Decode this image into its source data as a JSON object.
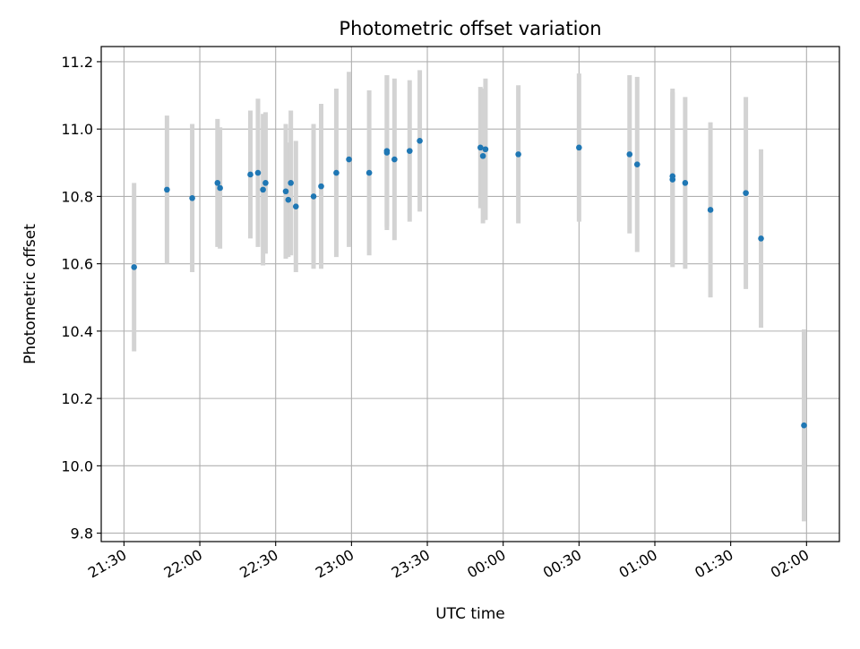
{
  "chart_data": {
    "type": "scatter",
    "title": "Photometric offset variation",
    "xlabel": "UTC time",
    "ylabel": "Photometric offset",
    "x_unit": "UTC time (hh:mm), evening to next morning",
    "xlim": [
      "21:21",
      "02:13"
    ],
    "ylim": [
      9.775,
      11.245
    ],
    "grid": true,
    "x_ticks": [
      "21:30",
      "22:00",
      "22:30",
      "23:00",
      "23:30",
      "00:00",
      "00:30",
      "01:00",
      "01:30",
      "02:00"
    ],
    "y_ticks": [
      "9.8",
      "10.0",
      "10.2",
      "10.4",
      "10.6",
      "10.8",
      "11.0",
      "11.2"
    ],
    "y_tick_values": [
      9.8,
      10.0,
      10.2,
      10.4,
      10.6,
      10.8,
      11.0,
      11.2
    ],
    "colors": {
      "point": "#1f77b4",
      "errorbar": "#d3d3d3",
      "grid": "#b0b0b0",
      "axes": "#000000"
    },
    "series": [
      {
        "x": [
          "21:34",
          "21:47",
          "21:57",
          "22:07",
          "22:08",
          "22:20",
          "22:23",
          "22:25",
          "22:26",
          "22:34",
          "22:35",
          "22:36",
          "22:38",
          "22:45",
          "22:48",
          "22:54",
          "22:59",
          "23:07",
          "23:14",
          "23:14",
          "23:17",
          "23:23",
          "23:27",
          "23:51",
          "23:52",
          "23:53",
          "24:06",
          "24:30",
          "24:50",
          "24:53",
          "25:07",
          "25:07",
          "25:12",
          "25:22",
          "25:36",
          "25:42",
          "25:59"
        ],
        "y": [
          10.59,
          10.82,
          10.795,
          10.84,
          10.825,
          10.865,
          10.87,
          10.82,
          10.84,
          10.815,
          10.79,
          10.84,
          10.77,
          10.8,
          10.83,
          10.87,
          10.91,
          10.87,
          10.93,
          10.935,
          10.91,
          10.935,
          10.965,
          10.945,
          10.92,
          10.94,
          10.925,
          10.945,
          10.925,
          10.895,
          10.85,
          10.86,
          10.84,
          10.76,
          10.81,
          10.675,
          10.12
        ],
        "yerr": [
          0.25,
          0.22,
          0.22,
          0.19,
          0.18,
          0.19,
          0.22,
          0.225,
          0.21,
          0.2,
          0.17,
          0.215,
          0.195,
          0.215,
          0.245,
          0.25,
          0.26,
          0.245,
          0.23,
          0.225,
          0.24,
          0.21,
          0.21,
          0.18,
          0.2,
          0.21,
          0.205,
          0.22,
          0.235,
          0.26,
          0.26,
          0.26,
          0.255,
          0.26,
          0.285,
          0.265,
          0.285
        ]
      }
    ]
  }
}
